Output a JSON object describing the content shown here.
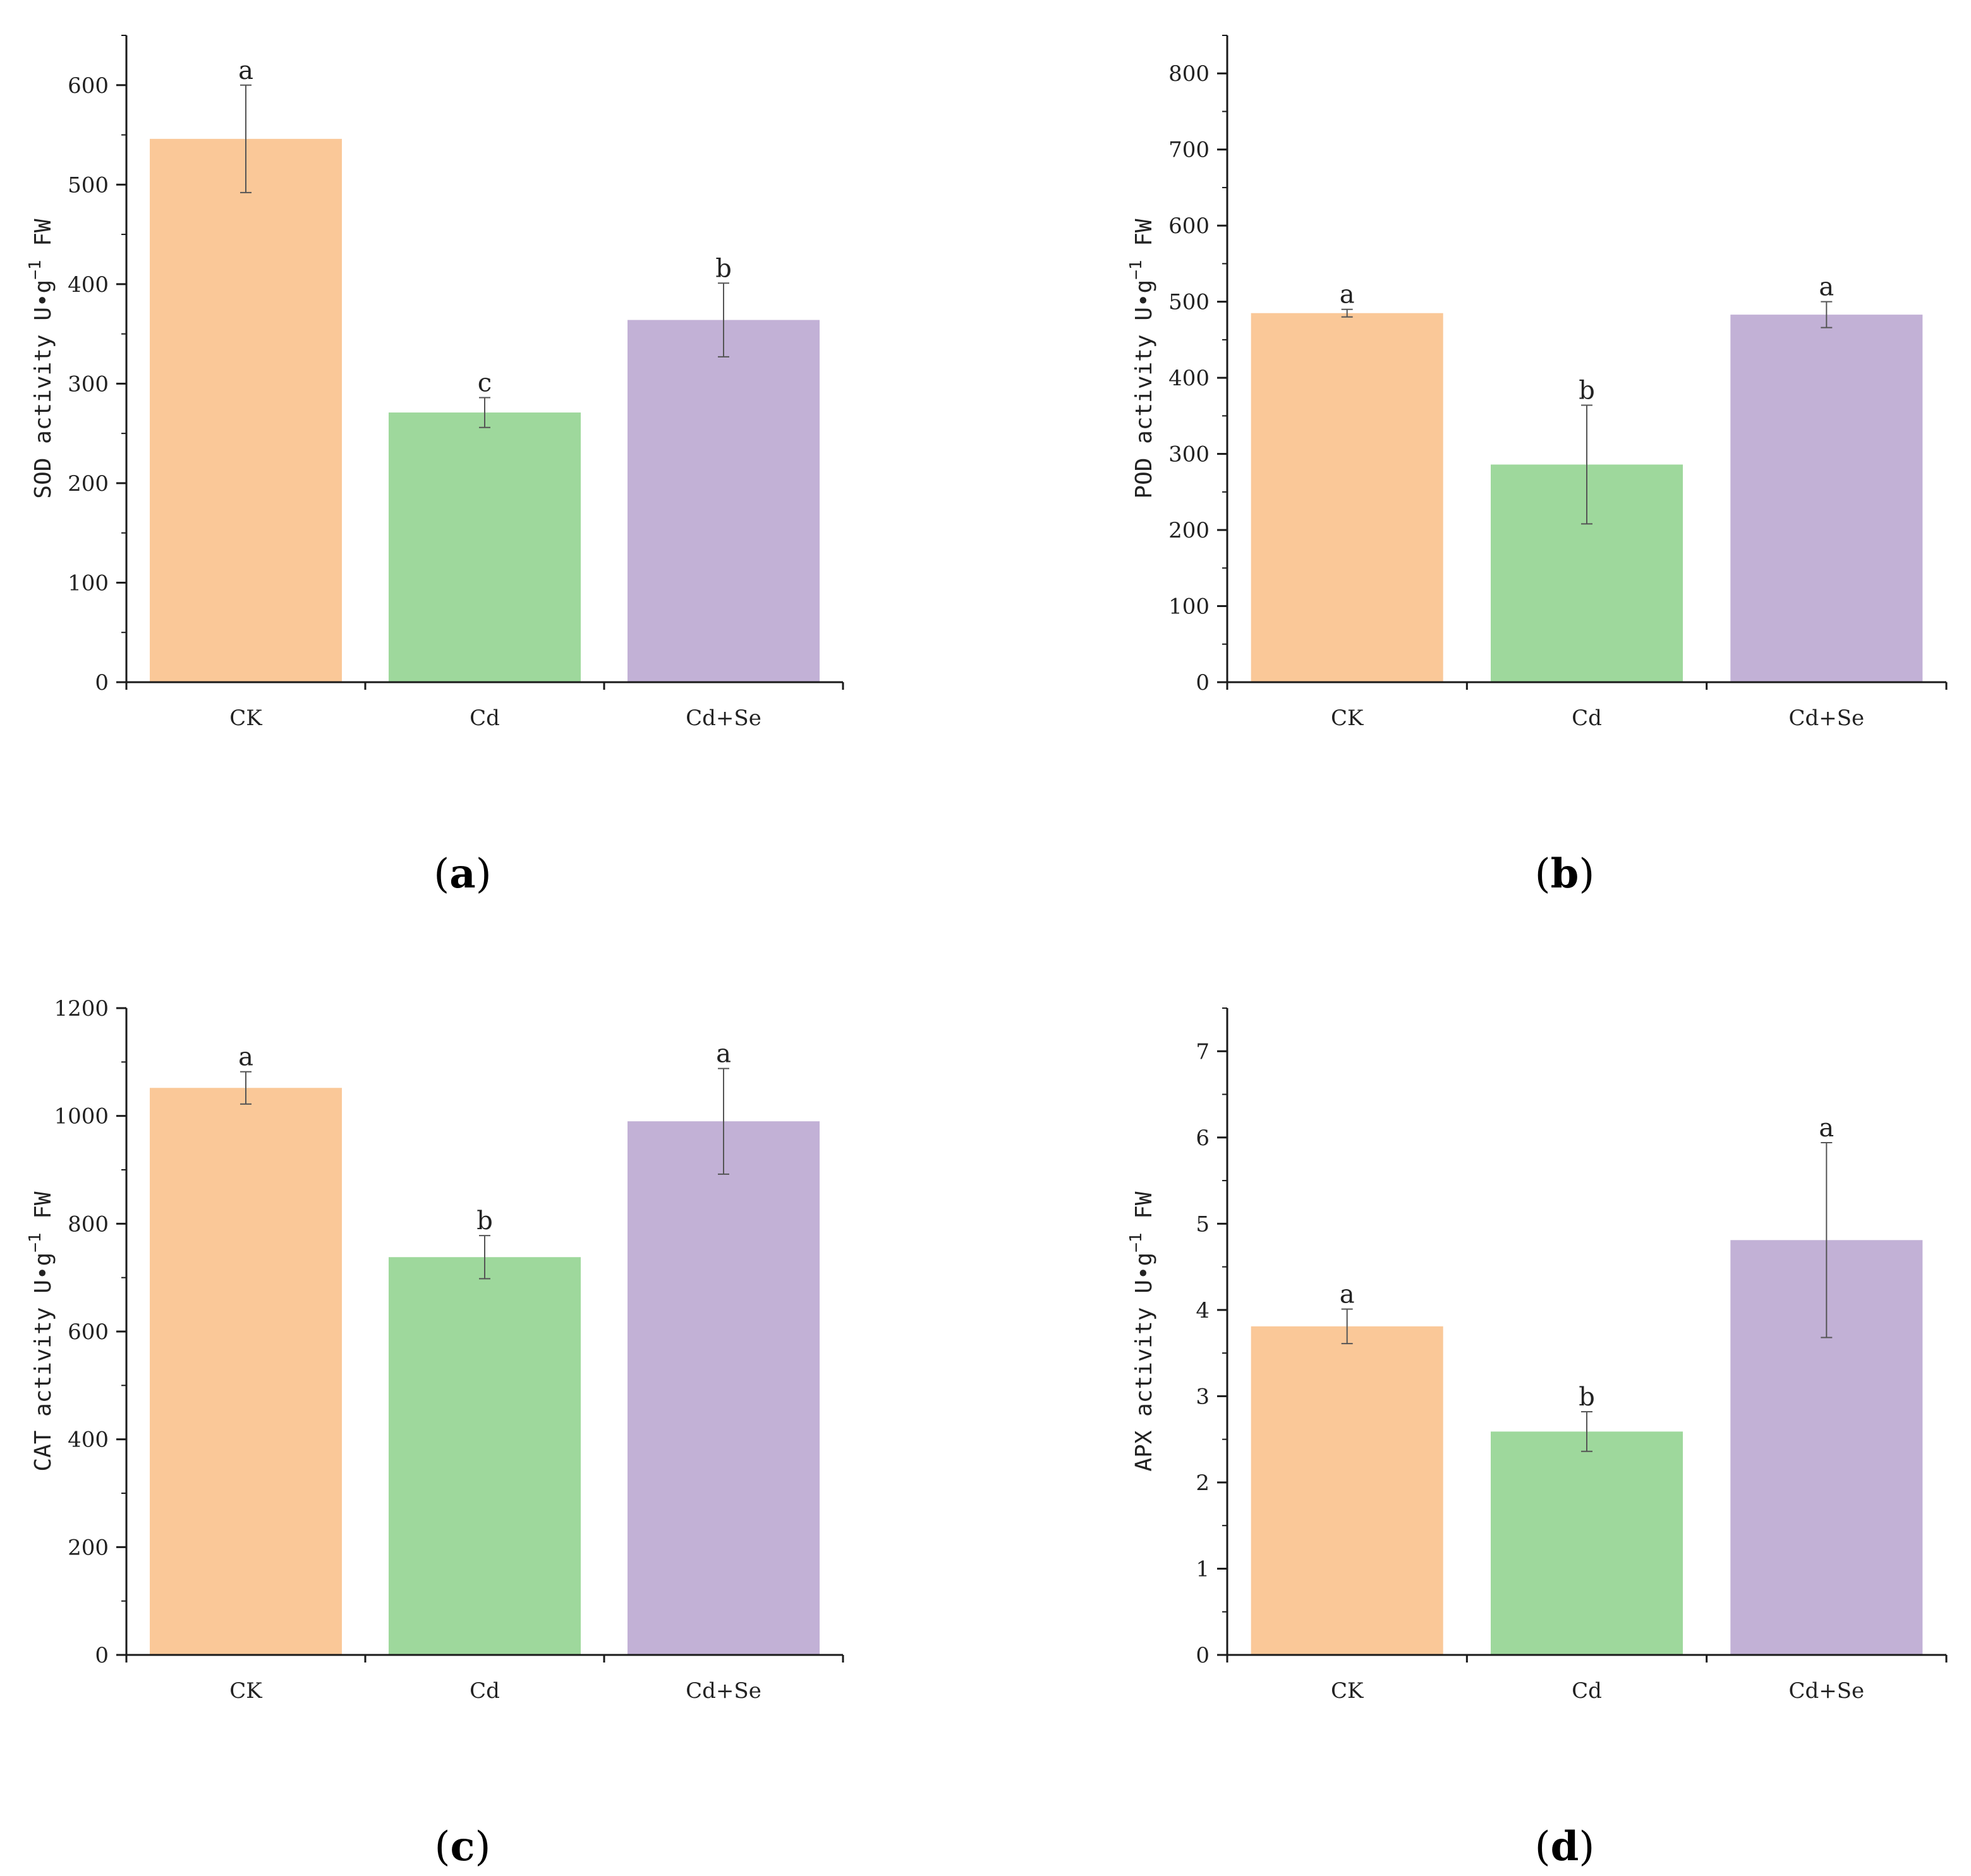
{
  "figure": {
    "colors": {
      "CK": "#FAC898",
      "Cd": "#9ED89C",
      "Cd+Se": "#C2B1D6",
      "axis": "#1a1a1a",
      "errorbar": "#555555"
    }
  },
  "chart_data": [
    {
      "type": "bar",
      "panel_label": "a",
      "categories": [
        "CK",
        "Cd",
        "Cd+Se"
      ],
      "values": [
        546,
        271,
        364
      ],
      "errors": [
        54,
        15,
        37
      ],
      "significance": [
        "a",
        "c",
        "b"
      ],
      "ylabel_main": "SOD activity U•g",
      "ylabel_sup": "−1",
      "ylabel_tail": " FW",
      "ylim": [
        0,
        650
      ],
      "yticks": [
        0,
        100,
        200,
        300,
        400,
        500,
        600
      ],
      "ytick_labels": [
        "0",
        "100",
        "200",
        "300",
        "400",
        "500",
        "600"
      ],
      "minor_step": 50
    },
    {
      "type": "bar",
      "panel_label": "b",
      "categories": [
        "CK",
        "Cd",
        "Cd+Se"
      ],
      "values": [
        485,
        286,
        483
      ],
      "errors": [
        5,
        78,
        17
      ],
      "significance": [
        "a",
        "b",
        "a"
      ],
      "ylabel_main": "POD activity U•g",
      "ylabel_sup": "−1",
      "ylabel_tail": " FW",
      "ylim": [
        0,
        850
      ],
      "yticks": [
        0,
        100,
        200,
        300,
        400,
        500,
        600,
        700,
        800
      ],
      "ytick_labels": [
        "0",
        "100",
        "200",
        "300",
        "400",
        "500",
        "600",
        "700",
        "800"
      ],
      "minor_step": 50
    },
    {
      "type": "bar",
      "panel_label": "c",
      "categories": [
        "CK",
        "Cd",
        "Cd+Se"
      ],
      "values": [
        1052,
        738,
        990
      ],
      "errors": [
        30,
        40,
        98
      ],
      "significance": [
        "a",
        "b",
        "a"
      ],
      "ylabel_main": "CAT activity U•g",
      "ylabel_sup": "−1",
      "ylabel_tail": " FW",
      "ylim": [
        0,
        1200
      ],
      "yticks": [
        0,
        200,
        400,
        600,
        800,
        1000,
        1200
      ],
      "ytick_labels": [
        "0",
        "200",
        "400",
        "600",
        "800",
        "1000",
        "1200"
      ],
      "minor_step": 100
    },
    {
      "type": "bar",
      "panel_label": "d",
      "categories": [
        "CK",
        "Cd",
        "Cd+Se"
      ],
      "values": [
        3.81,
        2.59,
        4.81
      ],
      "errors": [
        0.2,
        0.23,
        1.13
      ],
      "significance": [
        "a",
        "b",
        "a"
      ],
      "ylabel_main": "APX activity U•g",
      "ylabel_sup": "−1",
      "ylabel_tail": " FW",
      "ylim": [
        0,
        7.5
      ],
      "yticks": [
        0,
        1,
        2,
        3,
        4,
        5,
        6,
        7
      ],
      "ytick_labels": [
        "0",
        "1",
        "2",
        "3",
        "4",
        "5",
        "6",
        "7"
      ],
      "minor_step": 0.5
    }
  ]
}
